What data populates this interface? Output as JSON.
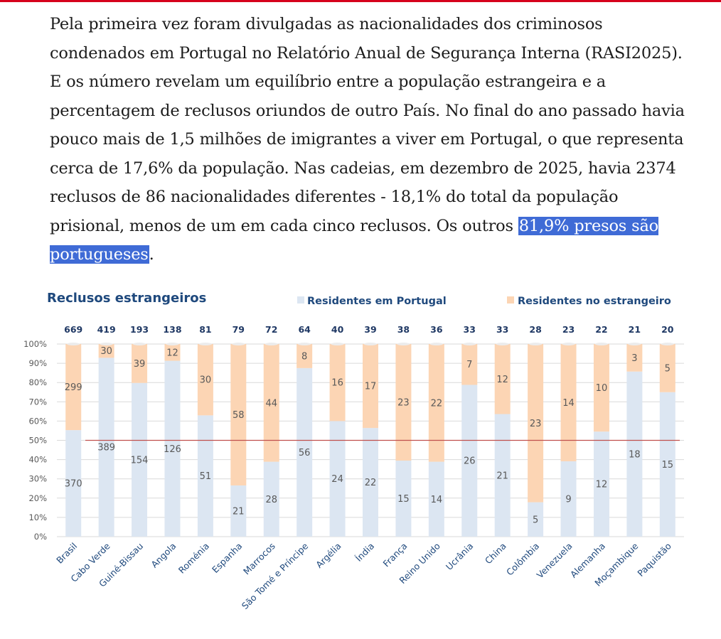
{
  "article": {
    "text_before": "Pela primeira vez foram divulgadas as nacionalidades dos criminosos condenados em Portugal no Relatório Anual de Segurança Interna (RASI2025). E os número revelam um equilíbrio entre a população estrangeira e a percentagem de reclusos oriundos de outro País. No final do ano passado havia pouco mais de 1,5 milhões de imigrantes a viver em Portugal, o que representa cerca de 17,6% da população. Nas cadeias, em dezembro de 2025, havia 2374 reclusos de 86 nacionalidades diferentes - 18,1% do total da população prisional, menos de um em cada cinco reclusos. Os outros ",
    "highlight": "81,9% presos são portugueses",
    "text_after": "."
  },
  "colors": {
    "residentes_portugal": "#dce6f2",
    "residentes_estrangeiro": "#fcd5b4",
    "reference_line": "#c0504d",
    "title": "#1f497d",
    "highlight": "#3f6bd6",
    "top_bar": "#d6001c"
  },
  "chart_data": {
    "type": "bar",
    "stacked": "percent",
    "title": "Reclusos estrangeiros",
    "categories": [
      "Brasil",
      "Cabo Verde",
      "Guiné-Bissau",
      "Angola",
      "Roménia",
      "Espanha",
      "Marrocos",
      "São Tomé e Príncipe",
      "Argélia",
      "Índia",
      "França",
      "Reino Unido",
      "Ucrânia",
      "China",
      "Colômbia",
      "Venezuela",
      "Alemanha",
      "Moçambique",
      "Paquistão"
    ],
    "totals": [
      669,
      419,
      193,
      138,
      81,
      79,
      72,
      64,
      40,
      39,
      38,
      36,
      33,
      33,
      28,
      23,
      22,
      21,
      20
    ],
    "series": [
      {
        "name": "Residentes em Portugal",
        "values": [
          370,
          389,
          154,
          126,
          51,
          21,
          28,
          56,
          24,
          22,
          15,
          14,
          26,
          21,
          5,
          9,
          12,
          18,
          15
        ]
      },
      {
        "name": "Residentes no estrangeiro",
        "values": [
          299,
          30,
          39,
          12,
          30,
          58,
          44,
          8,
          16,
          17,
          23,
          22,
          7,
          12,
          23,
          14,
          10,
          3,
          5
        ]
      }
    ],
    "y_ticks": [
      "0%",
      "10%",
      "20%",
      "30%",
      "40%",
      "50%",
      "60%",
      "70%",
      "80%",
      "90%",
      "100%"
    ],
    "ylim": [
      0,
      100
    ],
    "reference_line": 50,
    "grid": true,
    "legend_position": "top"
  }
}
